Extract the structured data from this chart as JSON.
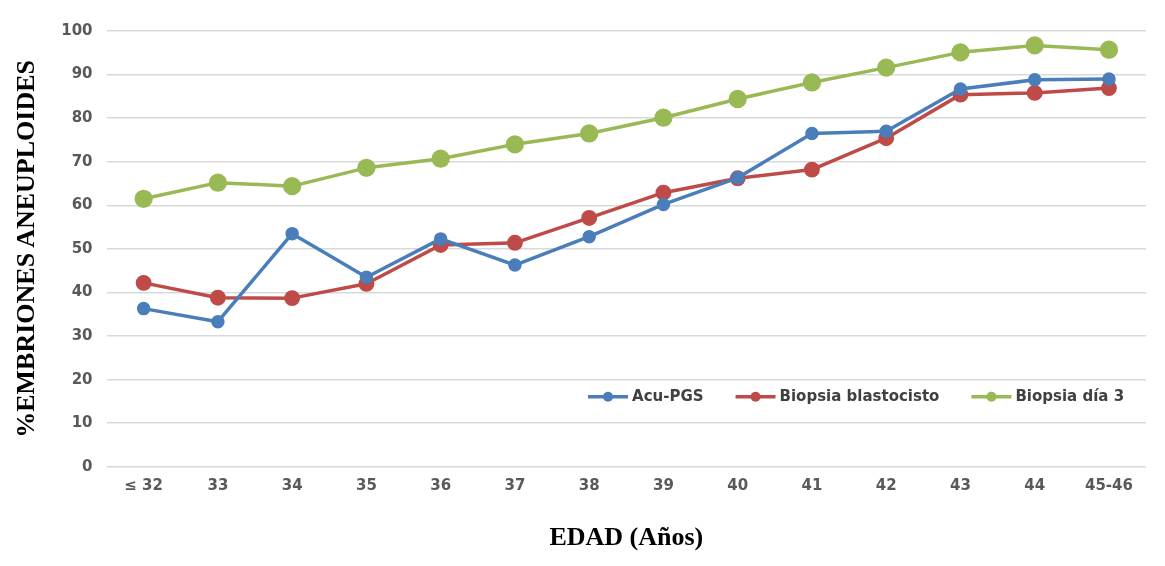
{
  "chart_data": {
    "type": "line",
    "xlabel": "EDAD (Años)",
    "ylabel": "%EMBRIONES ANEUPLOIDES",
    "categories": [
      "≤ 32",
      "33",
      "34",
      "35",
      "36",
      "37",
      "38",
      "39",
      "40",
      "41",
      "42",
      "43",
      "44",
      "45-46"
    ],
    "series": [
      {
        "name": "Acu-PGS",
        "color": "#4a7ebb",
        "values": [
          36.3,
          33.3,
          53.5,
          43.5,
          52.3,
          46.3,
          52.8,
          60.2,
          66.3,
          76.5,
          77.0,
          86.7,
          88.8,
          89.0
        ]
      },
      {
        "name": "Biopsia blastocisto",
        "color": "#be4b48",
        "values": [
          42.2,
          38.8,
          38.7,
          42.0,
          50.9,
          51.4,
          57.1,
          62.9,
          66.2,
          68.2,
          75.4,
          85.4,
          85.8,
          86.9
        ]
      },
      {
        "name": "Biopsia día 3",
        "color": "#98b954",
        "values": [
          61.5,
          65.2,
          64.4,
          68.6,
          70.7,
          74.0,
          76.5,
          80.1,
          84.4,
          88.2,
          91.6,
          95.1,
          96.7,
          95.7
        ]
      }
    ],
    "ylim": [
      0,
      100
    ],
    "yticks": [
      0,
      10,
      20,
      30,
      40,
      50,
      60,
      70,
      80,
      90,
      100
    ],
    "grid": "y",
    "legend": "bottom right",
    "marker": "circle",
    "line_style": "solid"
  }
}
